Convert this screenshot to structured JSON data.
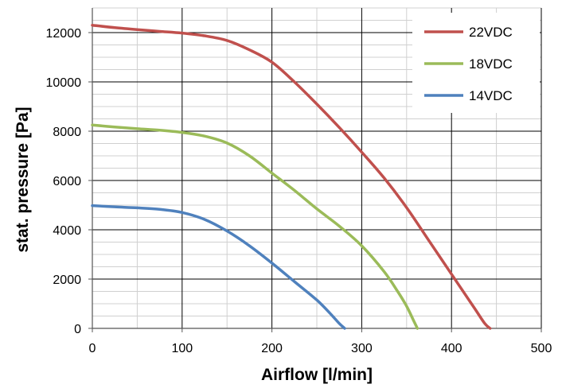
{
  "chart_data": {
    "type": "line",
    "title": "",
    "xlabel": "Airflow [l/min]",
    "ylabel": "stat. pressure [Pa]",
    "xlim": [
      0,
      500
    ],
    "ylim": [
      0,
      13000
    ],
    "x_ticks": [
      0,
      100,
      200,
      300,
      400,
      500
    ],
    "y_ticks": [
      0,
      2000,
      4000,
      6000,
      8000,
      10000,
      12000
    ],
    "x_tick_labels": [
      "0",
      "100",
      "200",
      "300",
      "400",
      "500"
    ],
    "y_tick_labels": [
      "0",
      "2000",
      "4000",
      "6000",
      "8000",
      "10000",
      "12000"
    ],
    "grid": {
      "major_x_step": 100,
      "minor_x_step": 50,
      "major_y_step": 2000,
      "minor_y_step": 500
    },
    "legend_position": "top-right",
    "series": [
      {
        "name": "22VDC",
        "color": "#c0504d",
        "points": [
          [
            0,
            12300
          ],
          [
            25,
            12200
          ],
          [
            50,
            12120
          ],
          [
            75,
            12050
          ],
          [
            100,
            11980
          ],
          [
            125,
            11870
          ],
          [
            150,
            11680
          ],
          [
            175,
            11300
          ],
          [
            200,
            10800
          ],
          [
            225,
            10000
          ],
          [
            250,
            9100
          ],
          [
            275,
            8150
          ],
          [
            300,
            7150
          ],
          [
            325,
            6100
          ],
          [
            350,
            4900
          ],
          [
            375,
            3550
          ],
          [
            400,
            2200
          ],
          [
            425,
            850
          ],
          [
            437,
            200
          ],
          [
            443,
            0
          ]
        ]
      },
      {
        "name": "18VDC",
        "color": "#9bbb59",
        "points": [
          [
            0,
            8250
          ],
          [
            25,
            8170
          ],
          [
            50,
            8100
          ],
          [
            75,
            8040
          ],
          [
            100,
            7950
          ],
          [
            125,
            7800
          ],
          [
            150,
            7520
          ],
          [
            175,
            7000
          ],
          [
            200,
            6300
          ],
          [
            225,
            5600
          ],
          [
            250,
            4850
          ],
          [
            275,
            4150
          ],
          [
            300,
            3350
          ],
          [
            325,
            2300
          ],
          [
            340,
            1500
          ],
          [
            350,
            900
          ],
          [
            358,
            300
          ],
          [
            362,
            0
          ]
        ]
      },
      {
        "name": "14VDC",
        "color": "#4f81bd",
        "points": [
          [
            0,
            4980
          ],
          [
            25,
            4930
          ],
          [
            50,
            4890
          ],
          [
            75,
            4830
          ],
          [
            100,
            4700
          ],
          [
            125,
            4420
          ],
          [
            150,
            3950
          ],
          [
            175,
            3350
          ],
          [
            200,
            2650
          ],
          [
            225,
            1900
          ],
          [
            250,
            1150
          ],
          [
            265,
            600
          ],
          [
            275,
            200
          ],
          [
            281,
            0
          ]
        ]
      }
    ]
  }
}
